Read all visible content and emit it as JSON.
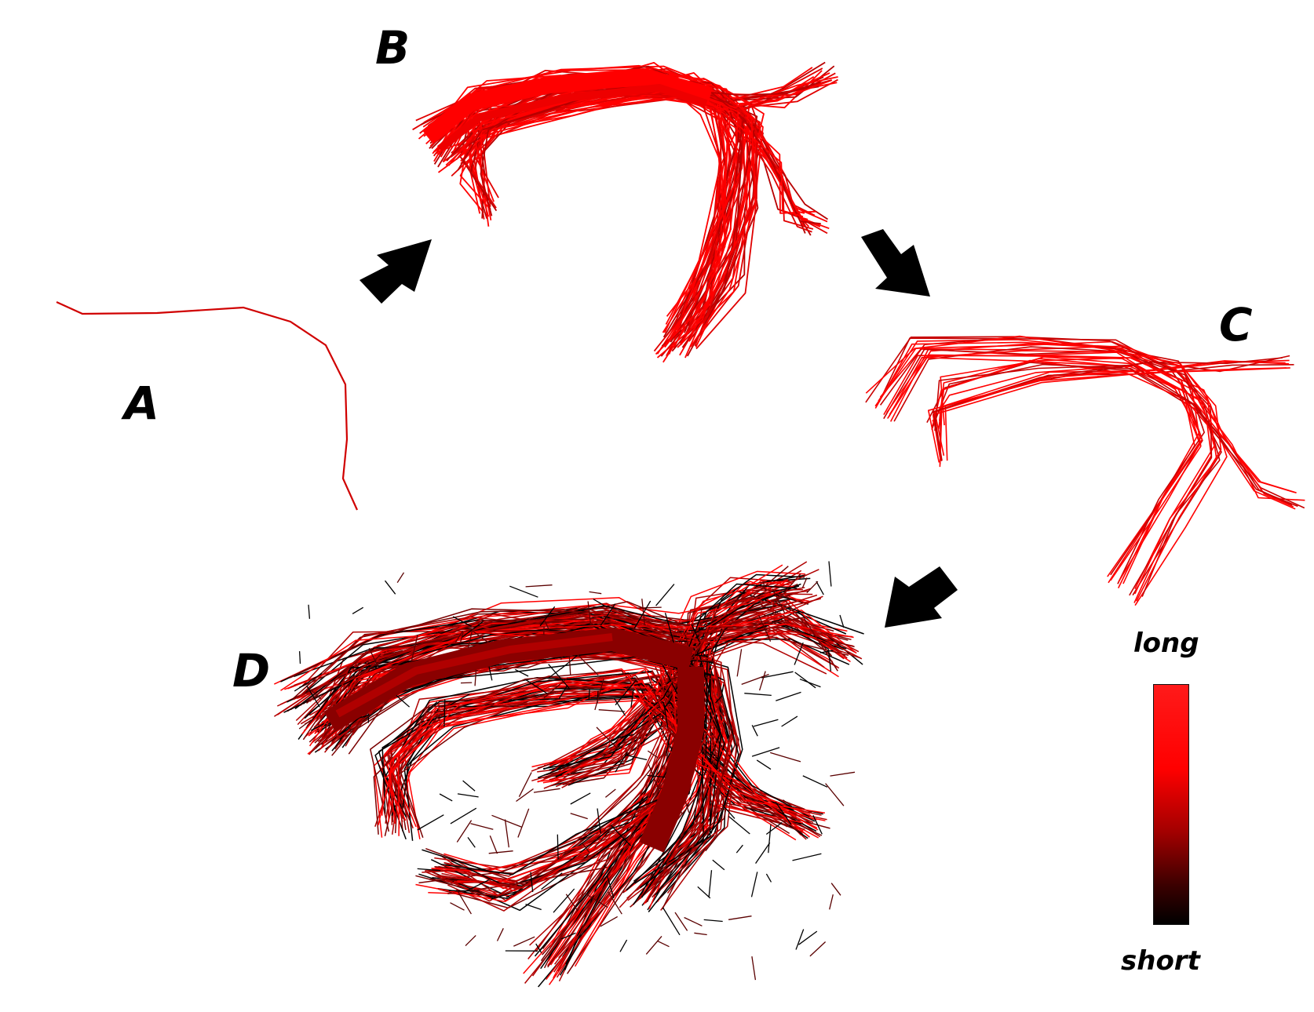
{
  "panels": {
    "a": {
      "label": "A"
    },
    "b": {
      "label": "B"
    },
    "c": {
      "label": "C"
    },
    "d": {
      "label": "D"
    }
  },
  "colorbar": {
    "top_label": "long",
    "bottom_label": "short",
    "colors": [
      "#ff1a1a",
      "#ff0000",
      "#a00000",
      "#3a0000",
      "#000000"
    ]
  },
  "colors": {
    "long_fiber": "#ff0000",
    "mid_fiber": "#b00000",
    "short_fiber": "#000000",
    "arrow": "#000000"
  }
}
